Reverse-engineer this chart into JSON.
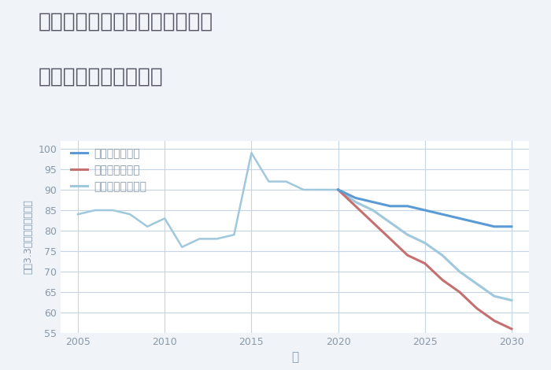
{
  "title_line1": "兵庫県たつの市揖保川町二塚の",
  "title_line2": "中古戸建ての価格推移",
  "xlabel": "年",
  "ylabel": "坪（3.3㎡）単価（万円）",
  "ylim": [
    55,
    102
  ],
  "xlim": [
    2004,
    2031
  ],
  "yticks": [
    55,
    60,
    65,
    70,
    75,
    80,
    85,
    90,
    95,
    100
  ],
  "xticks": [
    2005,
    2010,
    2015,
    2020,
    2025,
    2030
  ],
  "background_color": "#f0f4f8",
  "plot_background": "#ffffff",
  "grid_color": "#c5d5e5",
  "good_color": "#5b9bd5",
  "bad_color": "#c47070",
  "normal_color": "#a0c8dc",
  "good_label": "グッドシナリオ",
  "bad_label": "バッドシナリオ",
  "normal_label": "ノーマルシナリオ",
  "normal_x": [
    2005,
    2006,
    2007,
    2008,
    2009,
    2010,
    2011,
    2012,
    2013,
    2014,
    2015,
    2016,
    2017,
    2018,
    2019,
    2020
  ],
  "normal_y": [
    84,
    85,
    85,
    84,
    81,
    83,
    76,
    78,
    78,
    79,
    99,
    92,
    92,
    90,
    90,
    90
  ],
  "good_x": [
    2020,
    2021,
    2022,
    2023,
    2024,
    2025,
    2026,
    2027,
    2028,
    2029,
    2030
  ],
  "good_y": [
    90,
    88,
    87,
    86,
    86,
    85,
    84,
    83,
    82,
    81,
    81
  ],
  "bad_x": [
    2020,
    2021,
    2022,
    2023,
    2024,
    2025,
    2026,
    2027,
    2028,
    2029,
    2030
  ],
  "bad_y": [
    90,
    86,
    82,
    78,
    74,
    72,
    68,
    65,
    61,
    58,
    56
  ],
  "normal_future_x": [
    2020,
    2021,
    2022,
    2023,
    2024,
    2025,
    2026,
    2027,
    2028,
    2029,
    2030
  ],
  "normal_future_y": [
    90,
    87,
    85,
    82,
    79,
    77,
    74,
    70,
    67,
    64,
    63
  ],
  "title_color": "#555566",
  "title_fontsize": 19,
  "axis_label_color": "#8899aa",
  "tick_color": "#8899aa",
  "legend_fontsize": 10
}
